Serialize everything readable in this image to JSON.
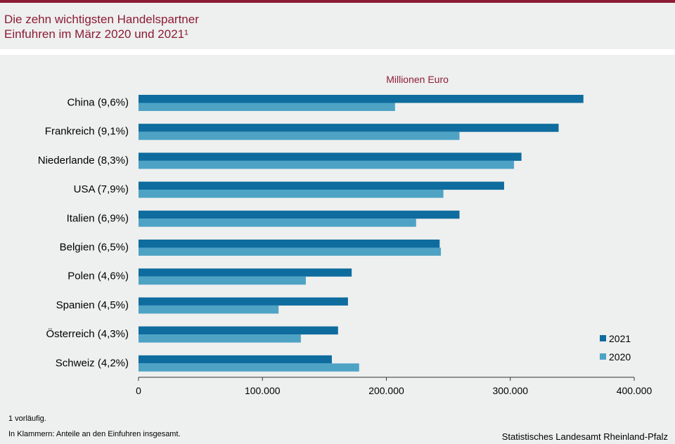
{
  "title": {
    "line1": "Die zehn wichtigsten Handelspartner",
    "line2": "Einfuhren im März 2020 und 2021¹"
  },
  "chart_data": {
    "type": "bar",
    "orientation": "horizontal",
    "unit_label": "Millionen Euro",
    "categories": [
      "China (9,6%)",
      "Frankreich (9,1%)",
      "Niederlande (8,3%)",
      "USA (7,9%)",
      "Italien (6,9%)",
      "Belgien (6,5%)",
      "Polen (4,6%)",
      "Spanien (4,5%)",
      "Österreich (4,3%)",
      "Schweiz (4,2%)"
    ],
    "series": [
      {
        "name": "2021",
        "color": "#0e6c9e",
        "values": [
          359000,
          339000,
          309000,
          295000,
          259000,
          243000,
          172000,
          169000,
          161000,
          156000
        ]
      },
      {
        "name": "2020",
        "color": "#4ea3c5",
        "values": [
          207000,
          259000,
          303000,
          246000,
          224000,
          244000,
          135000,
          113000,
          131000,
          178000
        ]
      }
    ],
    "xlim": [
      0,
      400000
    ],
    "x_ticks": [
      0,
      100000,
      200000,
      300000,
      400000
    ],
    "x_tick_labels": [
      "0",
      "100.000",
      "200.000",
      "300.000",
      "400.000"
    ],
    "legend_position": "bottom-right",
    "grid": false
  },
  "footnotes": {
    "line1": "1 vorläufig.",
    "line2": "In Klammern: Anteile an den Einfuhren insgesamt."
  },
  "source": "Statistisches Landesamt Rheinland-Pfalz"
}
